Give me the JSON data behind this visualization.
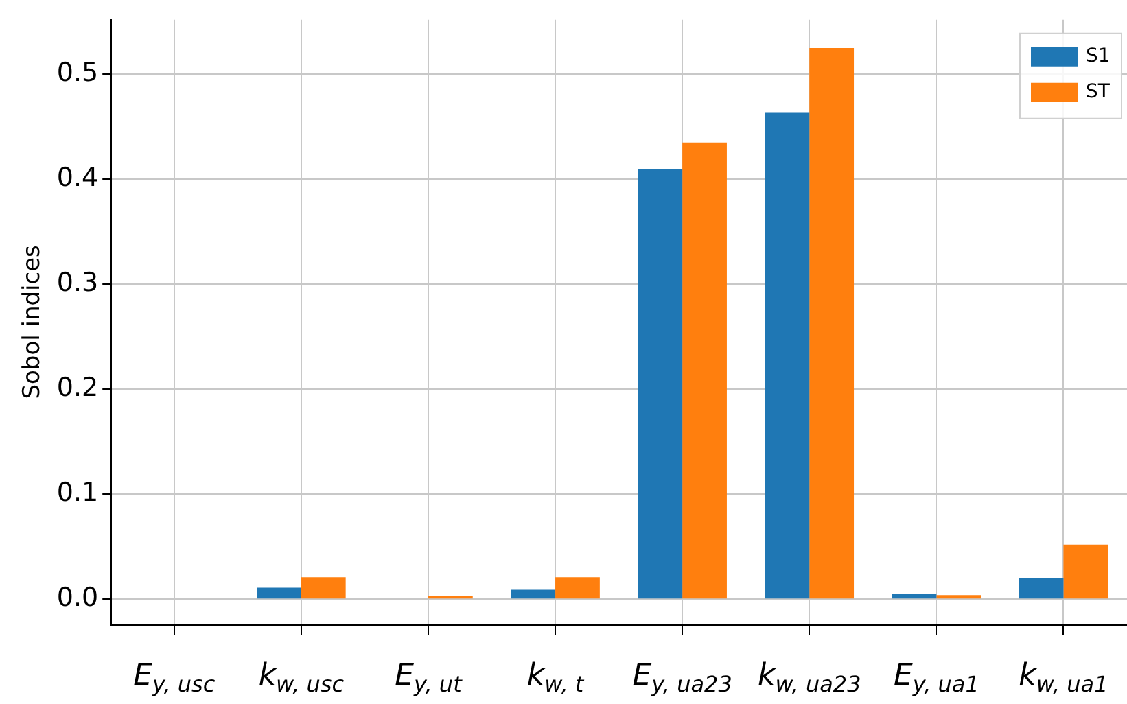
{
  "chart_data": {
    "type": "bar",
    "ylabel": "Sobol indices",
    "categories": [
      "E$_{y, usc}$",
      "k$_{w, usc}$",
      "E$_{y, ut}$",
      "k$_{w, t}$",
      "E$_{y, ua23}$",
      "k$_{w, ua23}$",
      "E$_{y, ua1}$",
      "k$_{w, ua1}$"
    ],
    "series": [
      {
        "name": "S1",
        "color": "#1f77b4",
        "values": [
          0,
          0.011,
          0,
          0.009,
          0.41,
          0.464,
          0.005,
          0.02
        ]
      },
      {
        "name": "ST",
        "color": "#ff7f0e",
        "values": [
          0,
          0.021,
          0.003,
          0.021,
          0.435,
          0.525,
          0.004,
          0.052
        ]
      }
    ],
    "ylim": [
      -0.024,
      0.552
    ],
    "yticks": [
      {
        "value": 0,
        "label": "0.0"
      },
      0.1,
      0.2,
      0.3,
      0.4,
      0.5
    ],
    "grid": true,
    "legend": "top right"
  }
}
